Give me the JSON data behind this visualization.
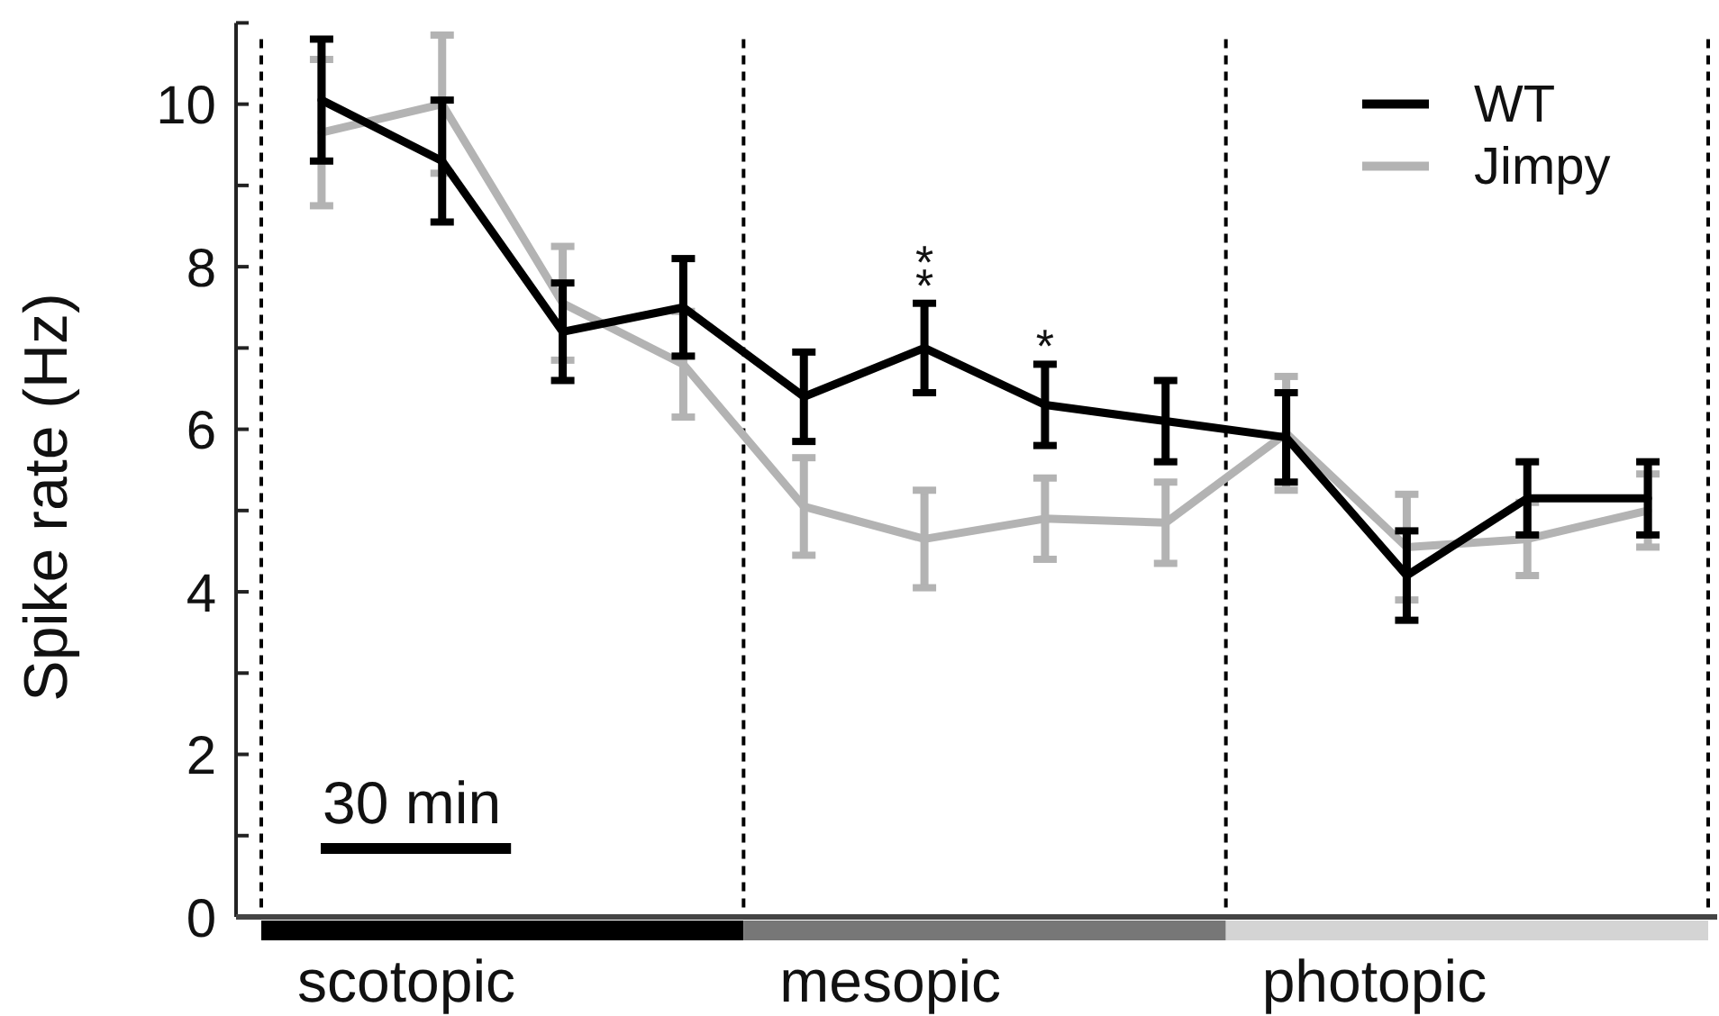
{
  "chart_data": {
    "type": "line",
    "ylabel": "Spike rate (Hz)",
    "categories": [
      null,
      null,
      null,
      null,
      null,
      null,
      null,
      null,
      null,
      null,
      null,
      null
    ],
    "ylim": [
      0,
      11
    ],
    "yticks": [
      0,
      {
        "value": 1,
        "label": null
      },
      2,
      {
        "value": 3,
        "label": null
      },
      4,
      {
        "value": 5,
        "label": null
      },
      6,
      {
        "value": 7,
        "label": null
      },
      8,
      {
        "value": 9,
        "label": null
      },
      10,
      {
        "value": 11,
        "label": null
      }
    ],
    "series": [
      {
        "name": "WT",
        "color": "#000000",
        "values": [
          10.05,
          9.3,
          7.2,
          7.5,
          6.4,
          7.0,
          6.3,
          6.1,
          5.9,
          4.2,
          5.15,
          5.15
        ],
        "errors": [
          0.75,
          0.75,
          0.6,
          0.6,
          0.55,
          0.55,
          0.5,
          0.5,
          0.55,
          0.55,
          0.45,
          0.45
        ],
        "value_labels": [
          null,
          null,
          null,
          null,
          null,
          "**",
          "*",
          null,
          null,
          null,
          null,
          null
        ]
      },
      {
        "name": "Jimpy",
        "color": "#b3b3b3",
        "values": [
          9.65,
          10.0,
          7.55,
          6.8,
          5.05,
          4.65,
          4.9,
          4.85,
          5.95,
          4.55,
          4.65,
          5.0
        ],
        "errors": [
          0.9,
          0.85,
          0.7,
          0.65,
          0.6,
          0.6,
          0.5,
          0.5,
          0.7,
          0.65,
          0.45,
          0.45
        ]
      }
    ],
    "legend": "top right",
    "tick_labels": "y",
    "annotations": [
      "scotopic",
      "mesopic",
      "photopic",
      "30 min"
    ]
  }
}
